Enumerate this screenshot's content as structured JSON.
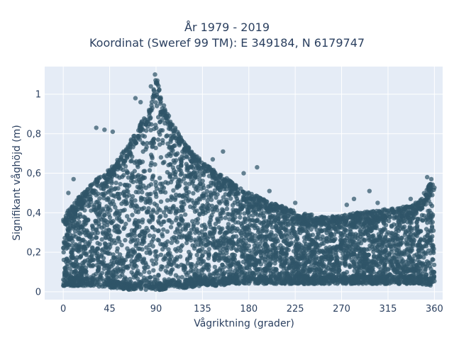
{
  "chart_data": {
    "type": "scatter",
    "title": "År 1979 - 2019",
    "subtitle": "Koordinat (Sweref 99 TM): E 349184, N 6179747",
    "xlabel": "Vågriktning (grader)",
    "ylabel": "Signifikant våghöjd (m)",
    "xlim": [
      -18,
      368
    ],
    "ylim": [
      -0.04,
      1.14
    ],
    "xticks": [
      0,
      45,
      90,
      135,
      180,
      225,
      270,
      315,
      360
    ],
    "xtick_labels": [
      "0",
      "45",
      "90",
      "135",
      "180",
      "225",
      "270",
      "315",
      "360"
    ],
    "yticks": [
      0,
      0.2,
      0.4,
      0.6,
      0.8,
      1
    ],
    "ytick_labels": [
      "0",
      "0,2",
      "0,4",
      "0,6",
      "0,8",
      "1"
    ],
    "grid": true,
    "marker_color": "#2f5468",
    "plot_background": "#e5ecf6",
    "envelope": {
      "x": [
        0,
        15,
        30,
        45,
        60,
        75,
        85,
        90,
        95,
        105,
        120,
        135,
        150,
        165,
        180,
        195,
        210,
        225,
        240,
        255,
        270,
        285,
        300,
        315,
        330,
        345,
        360
      ],
      "min": [
        0.03,
        0.03,
        0.03,
        0.02,
        0.01,
        0.01,
        0.01,
        0.01,
        0.01,
        0.02,
        0.02,
        0.03,
        0.03,
        0.04,
        0.04,
        0.04,
        0.04,
        0.04,
        0.04,
        0.04,
        0.04,
        0.04,
        0.04,
        0.04,
        0.04,
        0.04,
        0.03
      ],
      "max": [
        0.38,
        0.48,
        0.56,
        0.62,
        0.72,
        0.85,
        0.95,
        1.1,
        0.98,
        0.86,
        0.74,
        0.66,
        0.6,
        0.56,
        0.5,
        0.47,
        0.44,
        0.41,
        0.39,
        0.38,
        0.39,
        0.4,
        0.41,
        0.42,
        0.43,
        0.46,
        0.58
      ]
    },
    "outliers": [
      {
        "x": 89,
        "y": 1.1
      },
      {
        "x": 90,
        "y": 1.06
      },
      {
        "x": 85,
        "y": 1.04
      },
      {
        "x": 93,
        "y": 1.02
      },
      {
        "x": 70,
        "y": 0.98
      },
      {
        "x": 75,
        "y": 0.96
      },
      {
        "x": 32,
        "y": 0.83
      },
      {
        "x": 48,
        "y": 0.81
      },
      {
        "x": 40,
        "y": 0.82
      },
      {
        "x": 155,
        "y": 0.71
      },
      {
        "x": 145,
        "y": 0.67
      },
      {
        "x": 175,
        "y": 0.6
      },
      {
        "x": 188,
        "y": 0.63
      },
      {
        "x": 200,
        "y": 0.51
      },
      {
        "x": 225,
        "y": 0.45
      },
      {
        "x": 241,
        "y": 0.39
      },
      {
        "x": 275,
        "y": 0.44
      },
      {
        "x": 282,
        "y": 0.47
      },
      {
        "x": 297,
        "y": 0.51
      },
      {
        "x": 305,
        "y": 0.45
      },
      {
        "x": 337,
        "y": 0.47
      },
      {
        "x": 353,
        "y": 0.58
      },
      {
        "x": 357,
        "y": 0.57
      },
      {
        "x": 5,
        "y": 0.5
      },
      {
        "x": 10,
        "y": 0.57
      }
    ]
  }
}
